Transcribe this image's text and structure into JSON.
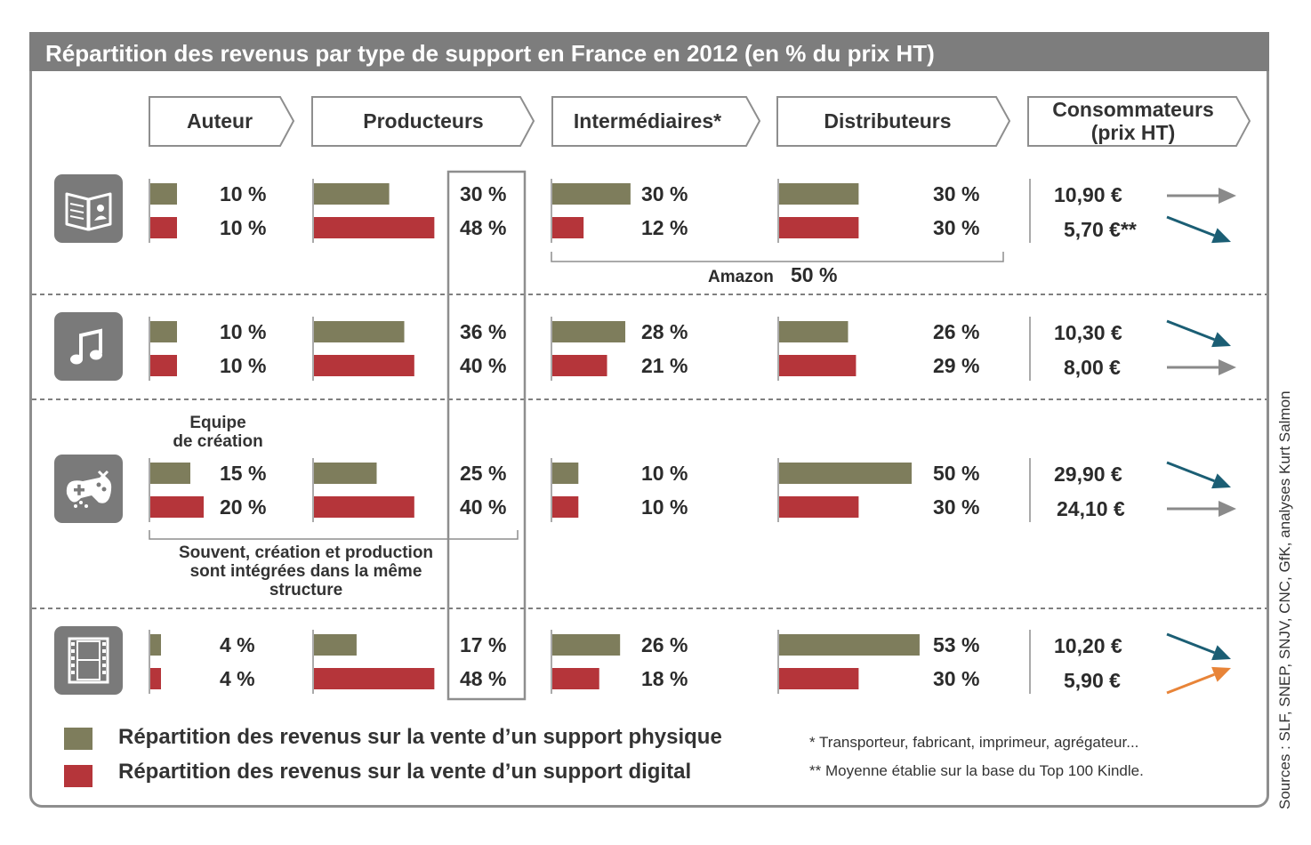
{
  "title": "Répartition des revenus par type de support en France en 2012 (en % du prix HT)",
  "columns": [
    {
      "label": "Auteur"
    },
    {
      "label": "Producteurs"
    },
    {
      "label": "Intermédiaires*"
    },
    {
      "label": "Distributeurs"
    },
    {
      "label": "Consommateurs\n(prix HT)"
    }
  ],
  "rows": [
    {
      "icon": "book-icon",
      "auteur": [
        "10 %",
        "10 %"
      ],
      "producteurs": [
        "30 %",
        "48 %"
      ],
      "intermediaires": [
        "30 %",
        "12 %"
      ],
      "distributeurs": [
        "30 %",
        "30 %"
      ],
      "prix": [
        "10,90 €",
        "5,70 €**"
      ],
      "arrows": [
        "flat",
        "down"
      ]
    },
    {
      "icon": "music-note-icon",
      "auteur": [
        "10 %",
        "10 %"
      ],
      "producteurs": [
        "36 %",
        "40 %"
      ],
      "intermediaires": [
        "28 %",
        "21 %"
      ],
      "distributeurs": [
        "26 %",
        "29 %"
      ],
      "prix": [
        "10,30 €",
        "8,00 €"
      ],
      "arrows": [
        "down",
        "flat"
      ]
    },
    {
      "icon": "gamepad-icon",
      "auteur": [
        "15 %",
        "20 %"
      ],
      "producteurs": [
        "25 %",
        "40 %"
      ],
      "intermediaires": [
        "10 %",
        "10 %"
      ],
      "distributeurs": [
        "50 %",
        "30 %"
      ],
      "prix": [
        "29,90 €",
        "24,10 €"
      ],
      "arrows": [
        "down",
        "flat"
      ]
    },
    {
      "icon": "film-icon",
      "auteur": [
        "4 %",
        "4 %"
      ],
      "producteurs": [
        "17 %",
        "48 %"
      ],
      "intermediaires": [
        "26 %",
        "18 %"
      ],
      "distributeurs": [
        "53 %",
        "30 %"
      ],
      "prix": [
        "10,20 €",
        "5,90 €"
      ],
      "arrows": [
        "down",
        "up"
      ]
    }
  ],
  "annotations": {
    "amazon_label": "Amazon",
    "amazon_value": "50 %",
    "equipe": "Equipe\nde création",
    "souvent": "Souvent, création et production\nsont intégrées dans la même\nstructure"
  },
  "legend": {
    "physical": "Répartition des revenus sur la vente d’un support physique",
    "digital": "Répartition des revenus sur la vente d’un support digital"
  },
  "footnotes": {
    "star": "* Transporteur, fabricant, imprimeur, agrégateur...",
    "double_star": "** Moyenne établie sur la base du Top 100 Kindle."
  },
  "source": "Sources : SLF, SNEP, SNJV, CNC, GfK, analyses Kurt Salmon",
  "colors": {
    "physical": "#7e7d5c",
    "digital": "#b5353a",
    "arrow_down": "#1b5e74",
    "arrow_flat": "#8a8a8a",
    "arrow_up": "#e88438",
    "title_bg": "#7d7d7d"
  },
  "chart_data": {
    "type": "bar",
    "title": "Répartition des revenus par type de support en France en 2012 (en % du prix HT)",
    "categories": [
      "Livre",
      "Musique",
      "Jeu vidéo",
      "Vidéo"
    ],
    "groups": [
      "Auteur",
      "Producteurs",
      "Intermédiaires*",
      "Distributeurs"
    ],
    "series": [
      {
        "name": "Répartition des revenus sur la vente d’un support physique",
        "values": {
          "Auteur": [
            10,
            10,
            15,
            4
          ],
          "Producteurs": [
            30,
            36,
            25,
            17
          ],
          "Intermédiaires*": [
            30,
            28,
            10,
            26
          ],
          "Distributeurs": [
            30,
            26,
            50,
            53
          ]
        }
      },
      {
        "name": "Répartition des revenus sur la vente d’un support digital",
        "values": {
          "Auteur": [
            10,
            10,
            20,
            4
          ],
          "Producteurs": [
            48,
            40,
            40,
            48
          ],
          "Intermédiaires*": [
            12,
            21,
            10,
            18
          ],
          "Distributeurs": [
            30,
            29,
            30,
            30
          ]
        }
      }
    ],
    "consumer_prices": {
      "physique": [
        10.9,
        10.3,
        29.9,
        10.2
      ],
      "digital": [
        5.7,
        8.0,
        24.1,
        5.9
      ]
    }
  }
}
